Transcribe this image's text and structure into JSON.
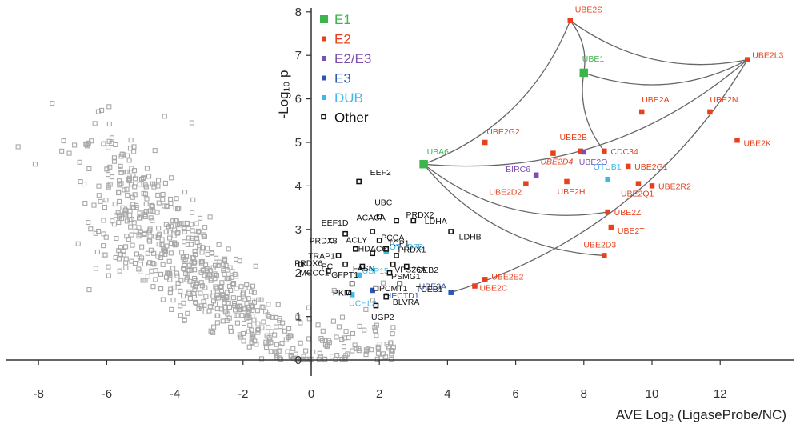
{
  "chart_data": {
    "type": "scatter",
    "title": "",
    "xlabel": "AVE Log₂ (LigaseProbe/NC)",
    "ylabel": "-Log₁₀ p",
    "xlim": [
      -8.8,
      13.6
    ],
    "ylim": [
      -0.3,
      8.2
    ],
    "x_ticks": [
      -8,
      -6,
      -4,
      -2,
      0,
      2,
      4,
      6,
      8,
      10,
      12
    ],
    "y_ticks": [
      0,
      1,
      2,
      3,
      4,
      5,
      6,
      7,
      8
    ],
    "grid": false,
    "legend_position": "top-left of right half",
    "colors": {
      "E1": "#3db54a",
      "E2": "#e8401c",
      "E2/E3": "#7a4fb0",
      "E3": "#2c55b8",
      "DUB": "#3fb8e8",
      "Other": "#111111",
      "background": "#a8a8a8"
    },
    "legend": [
      {
        "name": "E1",
        "marker": "large"
      },
      {
        "name": "E2",
        "marker": "small"
      },
      {
        "name": "E2/E3",
        "marker": "small"
      },
      {
        "name": "E3",
        "marker": "small"
      },
      {
        "name": "DUB",
        "marker": "small"
      },
      {
        "name": "Other",
        "marker": "small"
      }
    ],
    "highlighted": [
      {
        "label": "UBE2S",
        "cat": "E2",
        "x": 7.6,
        "y": 7.8
      },
      {
        "label": "UBE1",
        "cat": "E1",
        "x": 8.0,
        "y": 6.6
      },
      {
        "label": "UBE2L3",
        "cat": "E2",
        "x": 12.8,
        "y": 6.9
      },
      {
        "label": "UBE2A",
        "cat": "E2",
        "x": 9.7,
        "y": 5.7
      },
      {
        "label": "UBE2N",
        "cat": "E2",
        "x": 11.7,
        "y": 5.7
      },
      {
        "label": "UBE2K",
        "cat": "E2",
        "x": 12.5,
        "y": 5.05
      },
      {
        "label": "UBE2G2",
        "cat": "E2",
        "x": 5.1,
        "y": 5.0
      },
      {
        "label": "UBE2B",
        "cat": "E2",
        "x": 7.9,
        "y": 4.8
      },
      {
        "label": "UBE2D4",
        "cat": "E2",
        "x": 7.1,
        "y": 4.75
      },
      {
        "label": "UBE2O",
        "cat": "E2/E3",
        "x": 8.0,
        "y": 4.78
      },
      {
        "label": "CDC34",
        "cat": "E2",
        "x": 8.6,
        "y": 4.8
      },
      {
        "label": "UBA6",
        "cat": "E1",
        "x": 3.3,
        "y": 4.5
      },
      {
        "label": "UBE2G1",
        "cat": "E2",
        "x": 9.3,
        "y": 4.45
      },
      {
        "label": "BIRC6",
        "cat": "E2/E3",
        "x": 6.6,
        "y": 4.25
      },
      {
        "label": "OTUB1",
        "cat": "DUB",
        "x": 8.7,
        "y": 4.15
      },
      {
        "label": "UBE2D2",
        "cat": "E2",
        "x": 6.3,
        "y": 4.05
      },
      {
        "label": "UBE2H",
        "cat": "E2",
        "x": 7.5,
        "y": 4.1
      },
      {
        "label": "UBE2Q1",
        "cat": "E2",
        "x": 9.6,
        "y": 4.05
      },
      {
        "label": "UBE2R2",
        "cat": "E2",
        "x": 10.0,
        "y": 4.0
      },
      {
        "label": "UBE2Z",
        "cat": "E2",
        "x": 8.7,
        "y": 3.4
      },
      {
        "label": "UBE2T",
        "cat": "E2",
        "x": 8.8,
        "y": 3.05
      },
      {
        "label": "UBE2D3",
        "cat": "E2",
        "x": 8.6,
        "y": 2.4
      },
      {
        "label": "UBE2E2",
        "cat": "E2",
        "x": 5.1,
        "y": 1.85
      },
      {
        "label": "UBE2C",
        "cat": "E2",
        "x": 4.8,
        "y": 1.7
      },
      {
        "label": "UBE3A",
        "cat": "E3",
        "x": 4.1,
        "y": 1.55
      },
      {
        "label": "HECTD1",
        "cat": "E3",
        "x": 1.8,
        "y": 1.6
      },
      {
        "label": "OTUD7B",
        "cat": "DUB",
        "x": 2.2,
        "y": 2.5
      },
      {
        "label": "USP15",
        "cat": "DUB",
        "x": 1.4,
        "y": 1.95
      },
      {
        "label": "UCHL3",
        "cat": "DUB",
        "x": 1.2,
        "y": 1.5
      },
      {
        "label": "EEF2",
        "cat": "Other",
        "x": 1.4,
        "y": 4.1
      },
      {
        "label": "UBC",
        "cat": "Other",
        "x": 2.0,
        "y": 3.3
      },
      {
        "label": "PRDX2",
        "cat": "Other",
        "x": 2.5,
        "y": 3.2
      },
      {
        "label": "LDHA",
        "cat": "Other",
        "x": 3.0,
        "y": 3.2
      },
      {
        "label": "LDHB",
        "cat": "Other",
        "x": 4.1,
        "y": 2.95
      },
      {
        "label": "EEF1D",
        "cat": "Other",
        "x": 1.0,
        "y": 2.9
      },
      {
        "label": "ACACA",
        "cat": "Other",
        "x": 1.8,
        "y": 2.95
      },
      {
        "label": "PCCA",
        "cat": "Other",
        "x": 2.0,
        "y": 2.75
      },
      {
        "label": "TCP1",
        "cat": "Other",
        "x": 2.2,
        "y": 2.55
      },
      {
        "label": "PRDX3",
        "cat": "Other",
        "x": 0.6,
        "y": 2.75
      },
      {
        "label": "ACLY",
        "cat": "Other",
        "x": 1.3,
        "y": 2.55
      },
      {
        "label": "HDAC6",
        "cat": "Other",
        "x": 1.8,
        "y": 2.45
      },
      {
        "label": "PRDX1",
        "cat": "Other",
        "x": 2.5,
        "y": 2.4
      },
      {
        "label": "TRAP1",
        "cat": "Other",
        "x": 0.8,
        "y": 2.4
      },
      {
        "label": "PC",
        "cat": "Other",
        "x": 1.0,
        "y": 2.2
      },
      {
        "label": "FASN",
        "cat": "Other",
        "x": 1.5,
        "y": 2.15
      },
      {
        "label": "VPS26A",
        "cat": "Other",
        "x": 2.4,
        "y": 2.2
      },
      {
        "label": "TCEB2",
        "cat": "Other",
        "x": 2.8,
        "y": 2.15
      },
      {
        "label": "PRDX6",
        "cat": "Other",
        "x": -0.3,
        "y": 2.2
      },
      {
        "label": "MCCC1",
        "cat": "Other",
        "x": 0.5,
        "y": 2.05
      },
      {
        "label": "PSMG1",
        "cat": "Other",
        "x": 2.3,
        "y": 2.0
      },
      {
        "label": "GFPT1",
        "cat": "Other",
        "x": 1.2,
        "y": 1.75
      },
      {
        "label": "TCEB1",
        "cat": "Other",
        "x": 2.6,
        "y": 1.75
      },
      {
        "label": "PCMT1",
        "cat": "Other",
        "x": 1.9,
        "y": 1.65
      },
      {
        "label": "PKM",
        "cat": "Other",
        "x": 1.1,
        "y": 1.55
      },
      {
        "label": "BLVRA",
        "cat": "Other",
        "x": 2.2,
        "y": 1.45
      },
      {
        "label": "UGP2",
        "cat": "Other",
        "x": 1.9,
        "y": 1.25
      }
    ],
    "annotations": {
      "connections": [
        [
          "UBA6",
          "UBE2S"
        ],
        [
          "UBA6",
          "UBE2L3"
        ],
        [
          "UBA6",
          "UBE2Z"
        ],
        [
          "UBA6",
          "UBE2D3"
        ],
        [
          "UBE1",
          "UBE2S"
        ],
        [
          "UBE1",
          "UBE2L3"
        ],
        [
          "UBE1",
          "CDC34"
        ],
        [
          "UBE2S",
          "UBE2L3"
        ],
        [
          "UBE3A",
          "UBE2L3"
        ]
      ]
    }
  }
}
